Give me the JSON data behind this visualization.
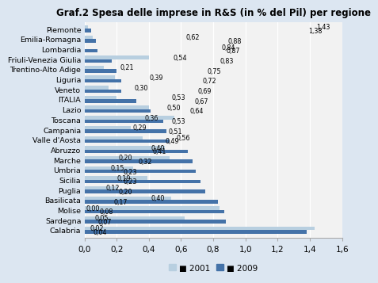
{
  "title": "Graf.2 Spesa delle imprese in R&S (in % del Pil) per regione",
  "regions": [
    "Piemonte",
    "Emilia-Romagna",
    "Lombardia",
    "Friuli-Venezia Giulia",
    "Trentino-Alto Adige",
    "Liguria",
    "Veneto",
    "ITALIA",
    "Lazio",
    "Toscana",
    "Campania",
    "Valle d'Aosta",
    "Abruzzo",
    "Marche",
    "Umbria",
    "Sicilia",
    "Puglia",
    "Basilicata",
    "Molise",
    "Sardegna",
    "Calabria"
  ],
  "values_2001": [
    1.43,
    0.62,
    0.84,
    0.54,
    0.21,
    0.39,
    0.3,
    0.53,
    0.5,
    0.36,
    0.29,
    0.56,
    0.4,
    0.2,
    0.15,
    0.19,
    0.12,
    0.4,
    0.0,
    0.05,
    0.02
  ],
  "values_2009": [
    1.38,
    0.88,
    0.87,
    0.83,
    0.75,
    0.72,
    0.69,
    0.67,
    0.64,
    0.53,
    0.51,
    0.49,
    0.41,
    0.32,
    0.23,
    0.23,
    0.2,
    0.17,
    0.08,
    0.07,
    0.04
  ],
  "color_2001": "#b8cfe0",
  "color_2009": "#4472a8",
  "xlim": [
    0,
    1.6
  ],
  "xticks": [
    0.0,
    0.2,
    0.4,
    0.6,
    0.8,
    1.0,
    1.2,
    1.4,
    1.6
  ],
  "xtick_labels": [
    "0,0",
    "0,2",
    "0,4",
    "0,6",
    "0,8",
    "1,0",
    "1,2",
    "1,4",
    "1,6"
  ],
  "legend_2001": "2001",
  "legend_2009": "2009",
  "bar_height": 0.35,
  "fontsize_title": 8.5,
  "fontsize_labels": 6.8,
  "fontsize_values": 5.8,
  "fontsize_ticks": 7.5,
  "bg_color": "#dce6f1",
  "plot_bg_color": "#f2f2f2"
}
